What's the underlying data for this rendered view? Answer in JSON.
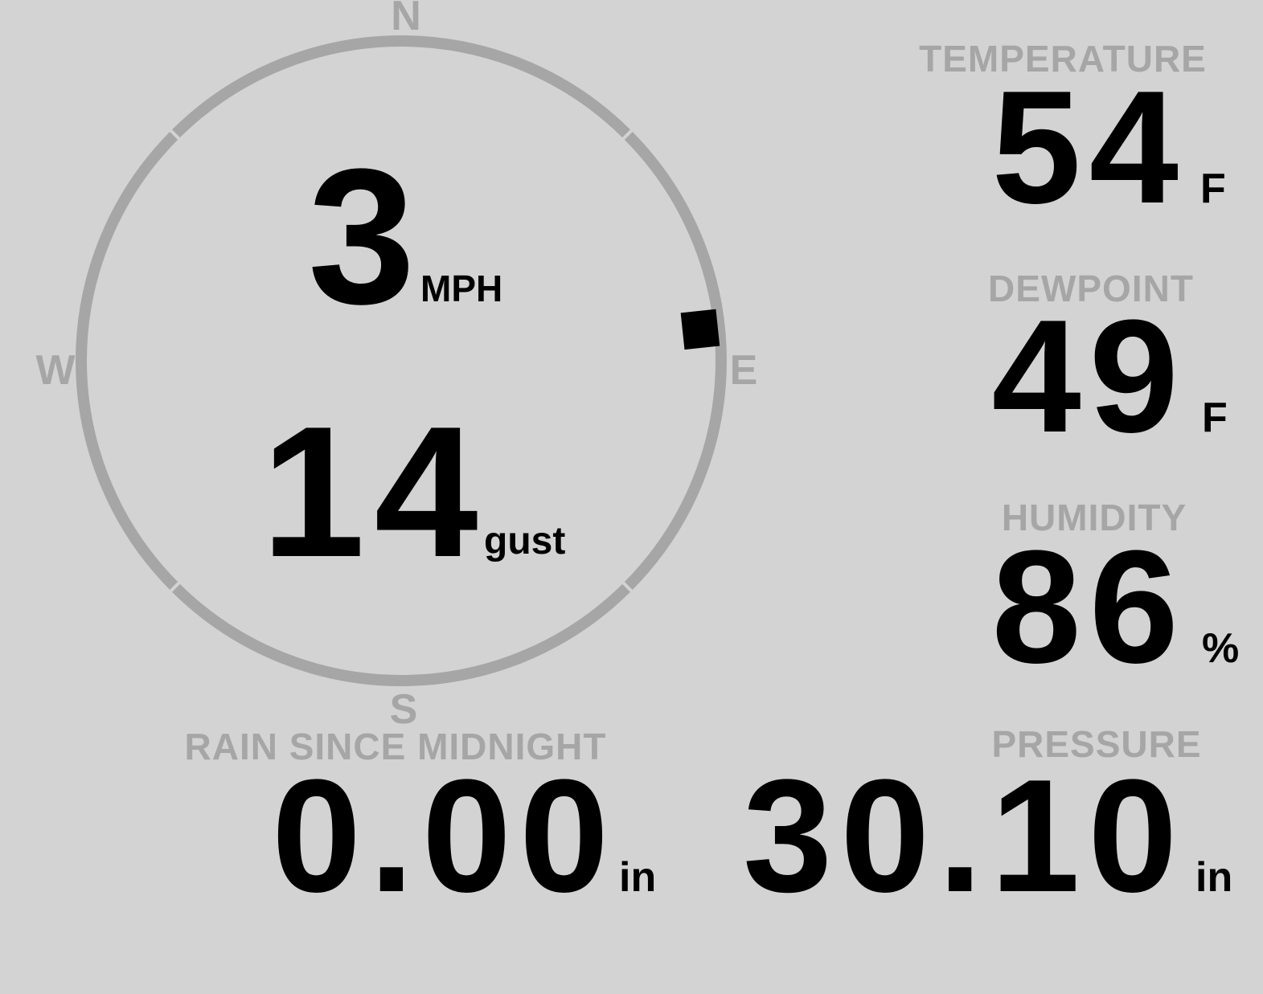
{
  "colors": {
    "background": "#d3d3d3",
    "muted": "#a6a6a6",
    "value": "#000000"
  },
  "wind_gauge": {
    "speed_value": "3",
    "speed_unit": "MPH",
    "gust_value": "14",
    "gust_unit": "gust",
    "direction_degrees": 84,
    "compass_points": {
      "north": "N",
      "east": "E",
      "south": "S",
      "west": "W"
    }
  },
  "stats": [
    {
      "label": "TEMPERATURE",
      "value": "54",
      "unit": "F"
    },
    {
      "label": "DEWPOINT",
      "value": "49",
      "unit": "F"
    },
    {
      "label": "HUMIDITY",
      "value": "86",
      "unit": "%"
    }
  ],
  "bottom_stats": [
    {
      "label": "RAIN SINCE MIDNIGHT",
      "value": "0.00",
      "unit": "in"
    },
    {
      "label": "PRESSURE",
      "value": "30.10",
      "unit": "in"
    }
  ]
}
